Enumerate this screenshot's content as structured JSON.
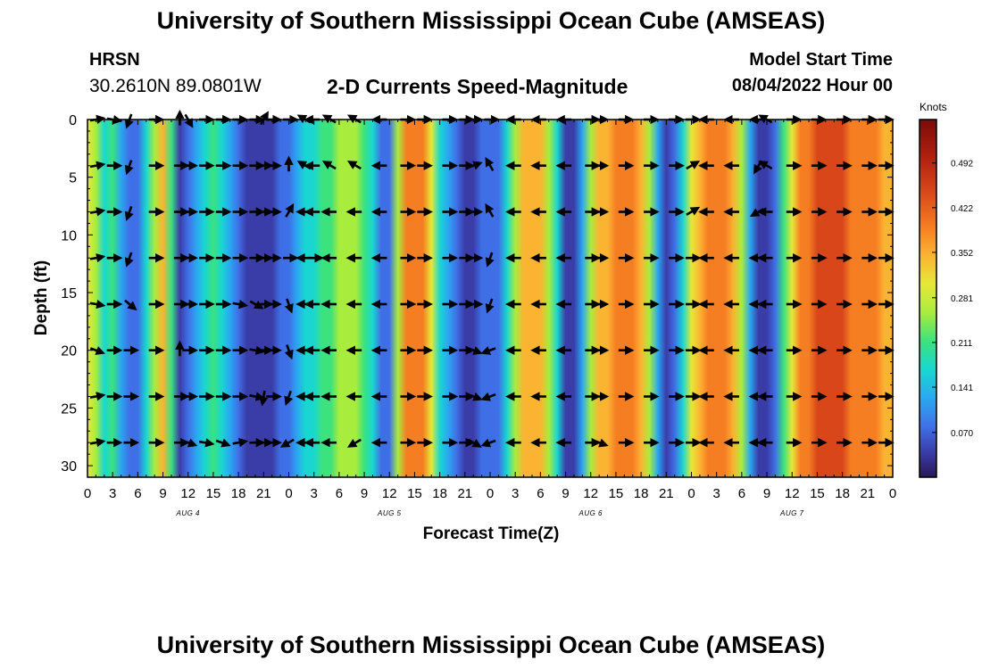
{
  "title": "University of Southern Mississippi Ocean Cube (AMSEAS)",
  "footer_title": "University of Southern Mississippi Ocean Cube (AMSEAS)",
  "station": "HRSN",
  "coords": "30.2610N  89.0801W",
  "model_start_label": "Model Start Time",
  "model_start_value": "08/04/2022 Hour 00",
  "chart_data": {
    "type": "heatmap",
    "title": "2-D Currents Speed-Magnitude",
    "xlabel": "Forecast Time(Z)",
    "ylabel": "Depth (ft)",
    "xlim": [
      0,
      96
    ],
    "ylim": [
      31,
      0
    ],
    "x_tick_values": [
      0,
      3,
      6,
      9,
      12,
      15,
      18,
      21,
      24,
      27,
      30,
      33,
      36,
      39,
      42,
      45,
      48,
      51,
      54,
      57,
      60,
      63,
      66,
      69,
      72,
      75,
      78,
      81,
      84,
      87,
      90,
      93,
      96
    ],
    "x_tick_labels": [
      "0",
      "3",
      "6",
      "9",
      "12",
      "15",
      "18",
      "21",
      "0",
      "3",
      "6",
      "9",
      "12",
      "15",
      "18",
      "21",
      "0",
      "3",
      "6",
      "9",
      "12",
      "15",
      "18",
      "21",
      "0",
      "3",
      "6",
      "9",
      "12",
      "15",
      "18",
      "21",
      "0"
    ],
    "date_labels": [
      {
        "x": 12,
        "label": "AUG 4"
      },
      {
        "x": 36,
        "label": "AUG 5"
      },
      {
        "x": 60,
        "label": "AUG 6"
      },
      {
        "x": 84,
        "label": "AUG 7"
      }
    ],
    "y_ticks": [
      0,
      5,
      10,
      15,
      20,
      25,
      30
    ],
    "colorbar": {
      "units": "Knots",
      "min": 0,
      "max": 0.56,
      "ticks": [
        0.07,
        0.141,
        0.211,
        0.281,
        0.352,
        0.422,
        0.492
      ],
      "tick_labels": [
        "0.070",
        "0.141",
        "0.211",
        "0.281",
        "0.352",
        "0.422",
        "0.492"
      ]
    },
    "vector_depths": [
      0,
      4,
      8,
      12,
      16,
      20,
      24,
      28
    ],
    "speed_profile": [
      {
        "x": 0,
        "v": 0.3
      },
      {
        "x": 1,
        "v": 0.26
      },
      {
        "x": 2,
        "v": 0.15
      },
      {
        "x": 3,
        "v": 0.2
      },
      {
        "x": 4,
        "v": 0.12
      },
      {
        "x": 5,
        "v": 0.06
      },
      {
        "x": 6,
        "v": 0.08
      },
      {
        "x": 7,
        "v": 0.18
      },
      {
        "x": 8,
        "v": 0.27
      },
      {
        "x": 9,
        "v": 0.34
      },
      {
        "x": 10,
        "v": 0.2
      },
      {
        "x": 11,
        "v": 0.03
      },
      {
        "x": 12,
        "v": 0.06
      },
      {
        "x": 13,
        "v": 0.12
      },
      {
        "x": 14,
        "v": 0.17
      },
      {
        "x": 15,
        "v": 0.2
      },
      {
        "x": 16,
        "v": 0.19
      },
      {
        "x": 17,
        "v": 0.14
      },
      {
        "x": 18,
        "v": 0.09
      },
      {
        "x": 19,
        "v": 0.04
      },
      {
        "x": 20,
        "v": 0.03
      },
      {
        "x": 21,
        "v": 0.03
      },
      {
        "x": 22,
        "v": 0.04
      },
      {
        "x": 23,
        "v": 0.06
      },
      {
        "x": 24,
        "v": 0.08
      },
      {
        "x": 25,
        "v": 0.12
      },
      {
        "x": 26,
        "v": 0.16
      },
      {
        "x": 27,
        "v": 0.19
      },
      {
        "x": 28,
        "v": 0.21
      },
      {
        "x": 29,
        "v": 0.22
      },
      {
        "x": 30,
        "v": 0.24
      },
      {
        "x": 31,
        "v": 0.26
      },
      {
        "x": 32,
        "v": 0.26
      },
      {
        "x": 33,
        "v": 0.22
      },
      {
        "x": 34,
        "v": 0.17
      },
      {
        "x": 35,
        "v": 0.1
      },
      {
        "x": 36,
        "v": 0.06
      },
      {
        "x": 37,
        "v": 0.25
      },
      {
        "x": 38,
        "v": 0.38
      },
      {
        "x": 39,
        "v": 0.4
      },
      {
        "x": 40,
        "v": 0.38
      },
      {
        "x": 41,
        "v": 0.3
      },
      {
        "x": 42,
        "v": 0.19
      },
      {
        "x": 43,
        "v": 0.12
      },
      {
        "x": 44,
        "v": 0.08
      },
      {
        "x": 45,
        "v": 0.05
      },
      {
        "x": 46,
        "v": 0.05
      },
      {
        "x": 47,
        "v": 0.06
      },
      {
        "x": 48,
        "v": 0.07
      },
      {
        "x": 49,
        "v": 0.1
      },
      {
        "x": 50,
        "v": 0.17
      },
      {
        "x": 51,
        "v": 0.28
      },
      {
        "x": 52,
        "v": 0.34
      },
      {
        "x": 53,
        "v": 0.35
      },
      {
        "x": 54,
        "v": 0.34
      },
      {
        "x": 55,
        "v": 0.28
      },
      {
        "x": 56,
        "v": 0.16
      },
      {
        "x": 57,
        "v": 0.04
      },
      {
        "x": 58,
        "v": 0.02
      },
      {
        "x": 59,
        "v": 0.12
      },
      {
        "x": 60,
        "v": 0.26
      },
      {
        "x": 61,
        "v": 0.33
      },
      {
        "x": 62,
        "v": 0.36
      },
      {
        "x": 63,
        "v": 0.38
      },
      {
        "x": 64,
        "v": 0.38
      },
      {
        "x": 65,
        "v": 0.37
      },
      {
        "x": 66,
        "v": 0.34
      },
      {
        "x": 67,
        "v": 0.25
      },
      {
        "x": 68,
        "v": 0.12
      },
      {
        "x": 69,
        "v": 0.04
      },
      {
        "x": 70,
        "v": 0.06
      },
      {
        "x": 71,
        "v": 0.16
      },
      {
        "x": 72,
        "v": 0.3
      },
      {
        "x": 73,
        "v": 0.36
      },
      {
        "x": 74,
        "v": 0.38
      },
      {
        "x": 75,
        "v": 0.38
      },
      {
        "x": 76,
        "v": 0.37
      },
      {
        "x": 77,
        "v": 0.34
      },
      {
        "x": 78,
        "v": 0.24
      },
      {
        "x": 79,
        "v": 0.12
      },
      {
        "x": 80,
        "v": 0.05
      },
      {
        "x": 81,
        "v": 0.03
      },
      {
        "x": 82,
        "v": 0.1
      },
      {
        "x": 83,
        "v": 0.2
      },
      {
        "x": 84,
        "v": 0.32
      },
      {
        "x": 85,
        "v": 0.38
      },
      {
        "x": 86,
        "v": 0.42
      },
      {
        "x": 87,
        "v": 0.45
      },
      {
        "x": 88,
        "v": 0.46
      },
      {
        "x": 89,
        "v": 0.46
      },
      {
        "x": 90,
        "v": 0.44
      },
      {
        "x": 91,
        "v": 0.42
      },
      {
        "x": 92,
        "v": 0.4
      },
      {
        "x": 93,
        "v": 0.38
      },
      {
        "x": 94,
        "v": 0.37
      },
      {
        "x": 95,
        "v": 0.36
      },
      {
        "x": 96,
        "v": 0.35
      }
    ],
    "arrows": [
      {
        "x": 1,
        "dirs": [
          80,
          80,
          80,
          80,
          100,
          110,
          80,
          80
        ]
      },
      {
        "x": 3,
        "dirs": [
          100,
          90,
          90,
          90,
          90,
          90,
          90,
          90
        ]
      },
      {
        "x": 5,
        "dirs": [
          200,
          200,
          200,
          200,
          130,
          90,
          90,
          90
        ]
      },
      {
        "x": 8,
        "dirs": [
          90,
          90,
          90,
          90,
          90,
          90,
          90,
          90
        ]
      },
      {
        "x": 11,
        "dirs": [
          0,
          90,
          90,
          90,
          90,
          0,
          90,
          90
        ]
      },
      {
        "x": 12,
        "dirs": [
          150,
          90,
          90,
          90,
          90,
          90,
          90,
          110
        ]
      },
      {
        "x": 14,
        "dirs": [
          90,
          90,
          90,
          90,
          90,
          90,
          90,
          100
        ]
      },
      {
        "x": 16,
        "dirs": [
          90,
          90,
          90,
          90,
          90,
          90,
          90,
          110
        ]
      },
      {
        "x": 18,
        "dirs": [
          90,
          90,
          90,
          90,
          100,
          90,
          90,
          80
        ]
      },
      {
        "x": 20,
        "dirs": [
          90,
          90,
          90,
          90,
          120,
          100,
          100,
          90
        ]
      },
      {
        "x": 21,
        "dirs": [
          30,
          90,
          90,
          90,
          90,
          90,
          190,
          90
        ]
      },
      {
        "x": 22,
        "dirs": [
          90,
          90,
          90,
          90,
          90,
          90,
          90,
          90
        ]
      },
      {
        "x": 24,
        "dirs": [
          90,
          0,
          30,
          90,
          160,
          160,
          200,
          240
        ]
      },
      {
        "x": 26,
        "dirs": [
          300,
          300,
          270,
          270,
          270,
          270,
          270,
          270
        ]
      },
      {
        "x": 27,
        "dirs": [
          270,
          270,
          270,
          90,
          270,
          270,
          270,
          270
        ]
      },
      {
        "x": 29,
        "dirs": [
          300,
          300,
          270,
          270,
          270,
          270,
          270,
          270
        ]
      },
      {
        "x": 32,
        "dirs": [
          300,
          300,
          270,
          270,
          270,
          270,
          270,
          240
        ]
      },
      {
        "x": 35,
        "dirs": [
          270,
          270,
          270,
          270,
          270,
          270,
          270,
          270
        ]
      },
      {
        "x": 38,
        "dirs": [
          90,
          90,
          90,
          90,
          90,
          90,
          90,
          90
        ]
      },
      {
        "x": 40,
        "dirs": [
          90,
          90,
          90,
          90,
          90,
          90,
          90,
          90
        ]
      },
      {
        "x": 43,
        "dirs": [
          90,
          90,
          90,
          90,
          90,
          90,
          90,
          90
        ]
      },
      {
        "x": 45,
        "dirs": [
          90,
          90,
          90,
          90,
          90,
          90,
          90,
          90
        ]
      },
      {
        "x": 46,
        "dirs": [
          90,
          70,
          90,
          90,
          90,
          110,
          110,
          120
        ]
      },
      {
        "x": 48,
        "dirs": [
          90,
          330,
          330,
          200,
          200,
          250,
          250,
          250
        ]
      },
      {
        "x": 51,
        "dirs": [
          270,
          270,
          270,
          270,
          270,
          270,
          270,
          270
        ]
      },
      {
        "x": 54,
        "dirs": [
          270,
          270,
          270,
          270,
          270,
          270,
          270,
          270
        ]
      },
      {
        "x": 57,
        "dirs": [
          270,
          270,
          270,
          270,
          270,
          270,
          270,
          270
        ]
      },
      {
        "x": 60,
        "dirs": [
          90,
          90,
          90,
          90,
          90,
          90,
          90,
          90
        ]
      },
      {
        "x": 61,
        "dirs": [
          90,
          90,
          90,
          90,
          90,
          90,
          90,
          110
        ]
      },
      {
        "x": 64,
        "dirs": [
          90,
          90,
          90,
          90,
          90,
          90,
          90,
          90
        ]
      },
      {
        "x": 67,
        "dirs": [
          90,
          90,
          90,
          90,
          90,
          90,
          90,
          90
        ]
      },
      {
        "x": 70,
        "dirs": [
          90,
          90,
          90,
          90,
          90,
          90,
          90,
          90
        ]
      },
      {
        "x": 72,
        "dirs": [
          90,
          60,
          60,
          90,
          90,
          90,
          90,
          90
        ]
      },
      {
        "x": 74,
        "dirs": [
          270,
          270,
          270,
          270,
          270,
          270,
          270,
          270
        ]
      },
      {
        "x": 77,
        "dirs": [
          270,
          270,
          270,
          270,
          270,
          270,
          270,
          270
        ]
      },
      {
        "x": 80,
        "dirs": [
          270,
          210,
          240,
          270,
          270,
          270,
          270,
          270
        ]
      },
      {
        "x": 81,
        "dirs": [
          300,
          300,
          270,
          270,
          270,
          270,
          270,
          270
        ]
      },
      {
        "x": 84,
        "dirs": [
          90,
          90,
          90,
          90,
          90,
          90,
          90,
          90
        ]
      },
      {
        "x": 87,
        "dirs": [
          90,
          90,
          90,
          90,
          90,
          90,
          90,
          90
        ]
      },
      {
        "x": 90,
        "dirs": [
          90,
          90,
          90,
          90,
          90,
          90,
          90,
          90
        ]
      },
      {
        "x": 93,
        "dirs": [
          90,
          90,
          90,
          90,
          90,
          90,
          90,
          90
        ]
      },
      {
        "x": 95,
        "dirs": [
          90,
          90,
          90,
          90,
          90,
          90,
          90,
          90
        ]
      }
    ]
  }
}
